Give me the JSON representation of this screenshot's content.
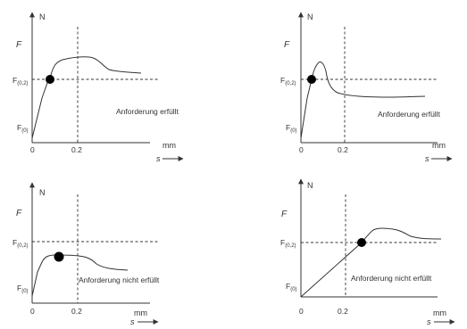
{
  "labels": {
    "y_unit": "N",
    "y_symbol": "F",
    "x_unit": "mm",
    "x_symbol": "s",
    "f02_main": "F",
    "f02_sub": "(0,2)",
    "f0_main": "F",
    "f0_sub": "(0)",
    "origin_tick": "0",
    "x_tick": "0.2"
  },
  "panels": [
    {
      "id": "top-left",
      "note": "Anforderung erfüllt"
    },
    {
      "id": "top-right",
      "note": "Anforderung erfüllt"
    },
    {
      "id": "bottom-left",
      "note": "Anforderung nicht erfüllt"
    },
    {
      "id": "bottom-right",
      "note": "Anforderung nicht erfüllt"
    }
  ]
}
